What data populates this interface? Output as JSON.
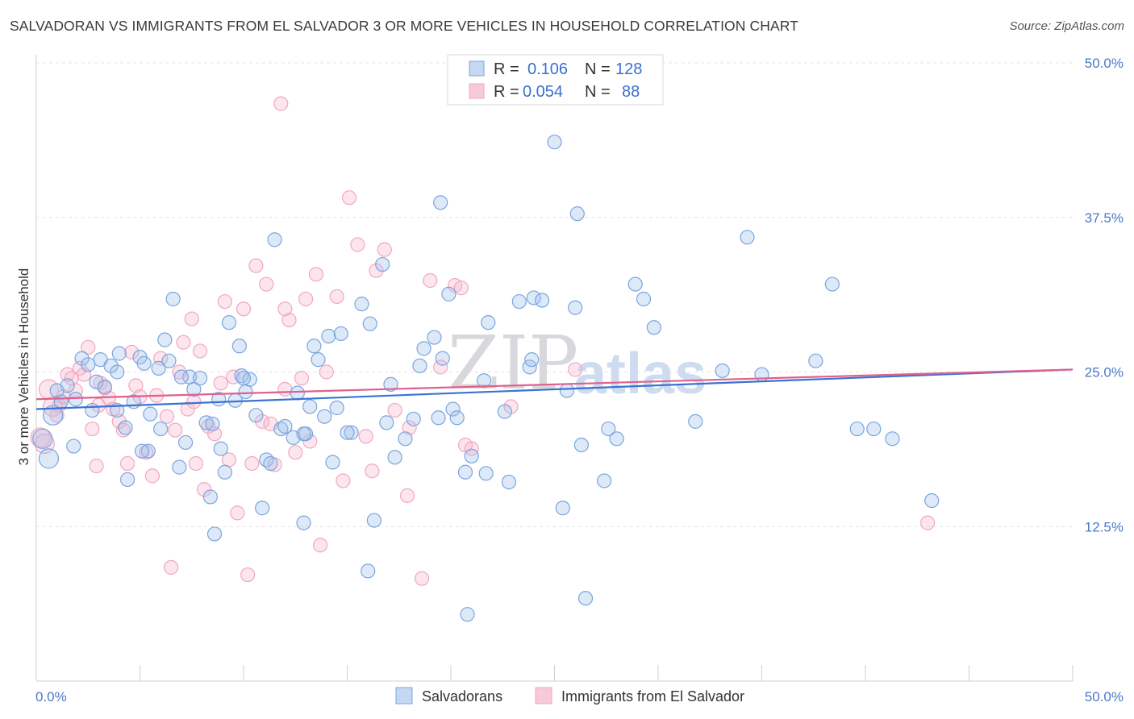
{
  "title": "SALVADORAN VS IMMIGRANTS FROM EL SALVADOR 3 OR MORE VEHICLES IN HOUSEHOLD CORRELATION CHART",
  "source": "Source: ZipAtlas.com",
  "watermark": {
    "part1": "ZIP",
    "part2": "atlas"
  },
  "chart_data": {
    "type": "scatter",
    "title": "SALVADORAN VS IMMIGRANTS FROM EL SALVADOR 3 OR MORE VEHICLES IN HOUSEHOLD CORRELATION CHART",
    "ylabel": "3 or more Vehicles in Household",
    "xlim": [
      0,
      50
    ],
    "ylim": [
      0,
      50
    ],
    "x_tick_labels": [
      "0.0%",
      "50.0%"
    ],
    "y_tick_labels": [
      "12.5%",
      "25.0%",
      "37.5%",
      "50.0%"
    ],
    "y_ticks": [
      12.5,
      25.0,
      37.5,
      50.0
    ],
    "grid": true,
    "legend_position": "top-center",
    "stats": [
      {
        "r_label": "R =",
        "r_value": "0.106",
        "n_label": "N =",
        "n_value": "128"
      },
      {
        "r_label": "R =",
        "r_value": "0.054",
        "n_label": "N =",
        "n_value": "88"
      }
    ],
    "series": [
      {
        "name": "Salvadorans",
        "color": "#7aa5e0",
        "line_color": "#3a73d0",
        "trend": {
          "x": [
            0,
            50
          ],
          "y": [
            22.0,
            25.2
          ]
        },
        "points": [
          [
            0.3,
            19.6
          ],
          [
            0.6,
            18.0
          ],
          [
            0.8,
            21.5
          ],
          [
            1.0,
            23.5
          ],
          [
            1.2,
            22.6
          ],
          [
            1.5,
            23.9
          ],
          [
            1.8,
            19.0
          ],
          [
            1.9,
            22.8
          ],
          [
            2.2,
            26.1
          ],
          [
            2.5,
            25.6
          ],
          [
            2.7,
            21.9
          ],
          [
            2.9,
            24.2
          ],
          [
            3.1,
            26.0
          ],
          [
            3.3,
            23.8
          ],
          [
            3.6,
            25.5
          ],
          [
            3.9,
            25.0
          ],
          [
            4.0,
            26.5
          ],
          [
            4.3,
            20.5
          ],
          [
            4.4,
            16.3
          ],
          [
            4.7,
            22.6
          ],
          [
            5.0,
            26.2
          ],
          [
            5.2,
            25.7
          ],
          [
            5.4,
            18.6
          ],
          [
            5.5,
            21.6
          ],
          [
            5.9,
            25.3
          ],
          [
            6.0,
            20.4
          ],
          [
            6.2,
            27.6
          ],
          [
            6.4,
            25.9
          ],
          [
            6.6,
            30.9
          ],
          [
            6.9,
            17.3
          ],
          [
            7.2,
            19.3
          ],
          [
            7.4,
            24.6
          ],
          [
            7.6,
            23.6
          ],
          [
            7.9,
            24.5
          ],
          [
            8.2,
            20.9
          ],
          [
            8.4,
            14.9
          ],
          [
            8.6,
            11.9
          ],
          [
            8.8,
            22.8
          ],
          [
            8.9,
            18.8
          ],
          [
            9.1,
            16.9
          ],
          [
            9.3,
            29.0
          ],
          [
            9.6,
            22.7
          ],
          [
            9.8,
            27.1
          ],
          [
            9.9,
            24.7
          ],
          [
            10.1,
            23.4
          ],
          [
            10.3,
            24.4
          ],
          [
            10.6,
            21.5
          ],
          [
            10.9,
            14.0
          ],
          [
            11.1,
            17.9
          ],
          [
            11.3,
            17.6
          ],
          [
            11.5,
            35.7
          ],
          [
            11.8,
            20.4
          ],
          [
            12.0,
            20.6
          ],
          [
            12.4,
            19.7
          ],
          [
            12.6,
            23.3
          ],
          [
            12.9,
            12.8
          ],
          [
            13.0,
            20.0
          ],
          [
            13.2,
            22.2
          ],
          [
            13.4,
            27.1
          ],
          [
            13.6,
            26.0
          ],
          [
            13.9,
            21.4
          ],
          [
            14.1,
            27.9
          ],
          [
            14.3,
            17.7
          ],
          [
            14.5,
            22.1
          ],
          [
            14.7,
            28.1
          ],
          [
            15.2,
            20.1
          ],
          [
            15.7,
            30.5
          ],
          [
            16.0,
            8.9
          ],
          [
            16.1,
            28.9
          ],
          [
            16.3,
            13.0
          ],
          [
            16.7,
            33.7
          ],
          [
            16.9,
            20.9
          ],
          [
            17.1,
            24.0
          ],
          [
            17.3,
            18.1
          ],
          [
            17.8,
            19.6
          ],
          [
            18.2,
            21.2
          ],
          [
            18.5,
            25.5
          ],
          [
            18.7,
            26.9
          ],
          [
            19.2,
            27.8
          ],
          [
            19.4,
            21.3
          ],
          [
            19.5,
            38.7
          ],
          [
            19.6,
            26.1
          ],
          [
            19.9,
            31.3
          ],
          [
            20.1,
            22.0
          ],
          [
            20.3,
            21.3
          ],
          [
            20.7,
            16.9
          ],
          [
            20.8,
            5.4
          ],
          [
            21.0,
            18.2
          ],
          [
            21.6,
            24.3
          ],
          [
            21.7,
            16.8
          ],
          [
            21.8,
            29.0
          ],
          [
            22.6,
            21.8
          ],
          [
            22.8,
            16.1
          ],
          [
            23.3,
            30.7
          ],
          [
            23.8,
            25.4
          ],
          [
            23.9,
            26.0
          ],
          [
            24.0,
            31.0
          ],
          [
            24.4,
            30.8
          ],
          [
            25.0,
            43.6
          ],
          [
            25.4,
            14.0
          ],
          [
            25.6,
            23.5
          ],
          [
            26.0,
            30.2
          ],
          [
            26.1,
            37.8
          ],
          [
            26.3,
            19.1
          ],
          [
            26.5,
            6.7
          ],
          [
            27.4,
            16.2
          ],
          [
            27.6,
            20.4
          ],
          [
            28.0,
            19.6
          ],
          [
            29.3,
            30.9
          ],
          [
            29.8,
            28.6
          ],
          [
            31.8,
            21.0
          ],
          [
            33.1,
            25.1
          ],
          [
            34.3,
            35.9
          ],
          [
            35.0,
            24.8
          ],
          [
            38.4,
            32.1
          ],
          [
            37.6,
            25.9
          ],
          [
            39.6,
            20.4
          ],
          [
            40.4,
            20.4
          ],
          [
            41.3,
            19.6
          ],
          [
            43.2,
            14.6
          ],
          [
            28.9,
            32.1
          ],
          [
            10.0,
            24.5
          ],
          [
            5.1,
            18.6
          ],
          [
            3.9,
            21.9
          ],
          [
            7.0,
            24.6
          ],
          [
            12.9,
            20.0
          ],
          [
            15.0,
            20.1
          ],
          [
            8.5,
            20.8
          ]
        ]
      },
      {
        "name": "Immigrants from El Salvador",
        "color": "#f2a7c0",
        "line_color": "#e0608e",
        "trend": {
          "x": [
            0,
            50
          ],
          "y": [
            22.8,
            25.2
          ]
        },
        "points": [
          [
            0.2,
            19.7
          ],
          [
            0.4,
            19.2
          ],
          [
            0.6,
            23.6
          ],
          [
            0.8,
            22.2
          ],
          [
            1.0,
            21.5
          ],
          [
            1.1,
            22.3
          ],
          [
            1.3,
            23.0
          ],
          [
            1.5,
            24.8
          ],
          [
            1.7,
            24.5
          ],
          [
            1.9,
            23.5
          ],
          [
            2.1,
            25.3
          ],
          [
            2.3,
            24.8
          ],
          [
            2.5,
            27.0
          ],
          [
            2.7,
            20.4
          ],
          [
            2.9,
            17.4
          ],
          [
            3.1,
            24.1
          ],
          [
            3.3,
            23.7
          ],
          [
            3.5,
            22.9
          ],
          [
            3.7,
            22.0
          ],
          [
            4.0,
            21.0
          ],
          [
            4.2,
            20.3
          ],
          [
            4.4,
            17.6
          ],
          [
            4.6,
            26.6
          ],
          [
            4.8,
            23.9
          ],
          [
            5.0,
            23.0
          ],
          [
            5.3,
            18.5
          ],
          [
            5.6,
            16.6
          ],
          [
            5.8,
            23.1
          ],
          [
            6.0,
            26.1
          ],
          [
            6.3,
            21.4
          ],
          [
            6.5,
            9.2
          ],
          [
            6.7,
            20.3
          ],
          [
            6.9,
            25.0
          ],
          [
            7.1,
            27.4
          ],
          [
            7.3,
            22.0
          ],
          [
            7.5,
            29.3
          ],
          [
            7.7,
            17.6
          ],
          [
            7.9,
            26.7
          ],
          [
            8.1,
            15.5
          ],
          [
            8.3,
            20.6
          ],
          [
            8.6,
            20.0
          ],
          [
            8.9,
            24.1
          ],
          [
            9.1,
            30.7
          ],
          [
            9.3,
            17.9
          ],
          [
            9.5,
            24.6
          ],
          [
            9.7,
            13.6
          ],
          [
            10.0,
            30.1
          ],
          [
            10.2,
            8.6
          ],
          [
            10.4,
            17.6
          ],
          [
            10.6,
            33.6
          ],
          [
            10.9,
            21.0
          ],
          [
            11.1,
            32.1
          ],
          [
            11.3,
            20.8
          ],
          [
            11.5,
            17.5
          ],
          [
            11.8,
            46.7
          ],
          [
            12.0,
            30.1
          ],
          [
            12.2,
            29.2
          ],
          [
            12.5,
            18.5
          ],
          [
            12.8,
            24.5
          ],
          [
            13.0,
            30.9
          ],
          [
            13.2,
            19.4
          ],
          [
            13.5,
            32.9
          ],
          [
            13.7,
            11.0
          ],
          [
            14.0,
            25.0
          ],
          [
            14.5,
            31.1
          ],
          [
            14.8,
            16.2
          ],
          [
            15.1,
            39.1
          ],
          [
            15.5,
            35.3
          ],
          [
            15.9,
            19.8
          ],
          [
            16.2,
            17.0
          ],
          [
            16.4,
            33.2
          ],
          [
            16.8,
            34.9
          ],
          [
            17.3,
            21.9
          ],
          [
            17.9,
            15.0
          ],
          [
            18.6,
            8.3
          ],
          [
            19.0,
            32.4
          ],
          [
            19.5,
            25.4
          ],
          [
            20.2,
            32.0
          ],
          [
            20.5,
            31.8
          ],
          [
            20.7,
            19.1
          ],
          [
            21.0,
            18.8
          ],
          [
            22.9,
            22.2
          ],
          [
            26.0,
            25.2
          ],
          [
            43.0,
            12.8
          ],
          [
            7.6,
            22.6
          ],
          [
            12.0,
            23.6
          ],
          [
            3.0,
            22.3
          ],
          [
            18.0,
            20.5
          ]
        ]
      }
    ]
  }
}
